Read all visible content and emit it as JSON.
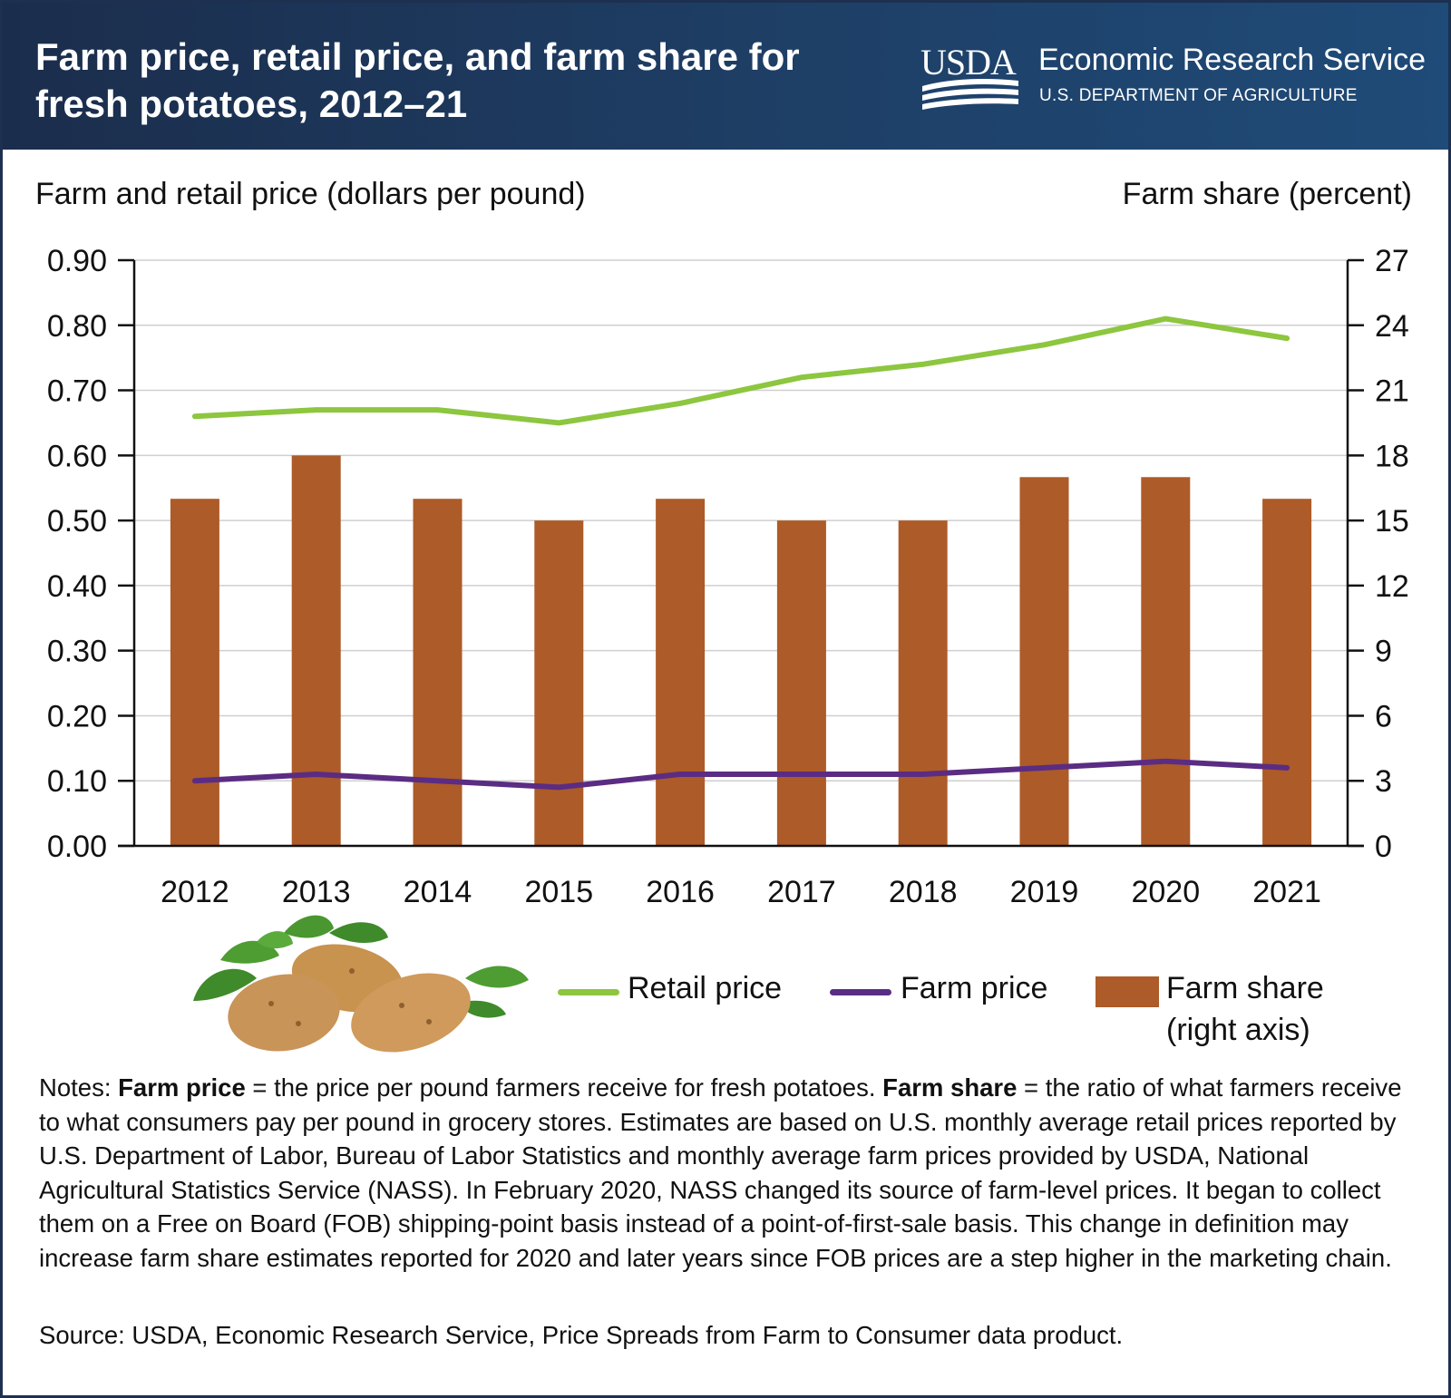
{
  "header": {
    "title": "Farm price, retail price, and farm share for fresh potatoes, 2012–21",
    "brand_mark": "USDA",
    "brand_name": "Economic Research Service",
    "brand_dept": "U.S. DEPARTMENT OF AGRICULTURE"
  },
  "colors": {
    "header_bg": "#1e3f66",
    "retail_line": "#8dc63f",
    "farm_line": "#5b2c83",
    "farm_share_bar": "#ad5b28",
    "gridline": "#cfcfcf"
  },
  "chart_data": {
    "type": "bar",
    "title": "Farm price, retail price, and farm share for fresh potatoes, 2012–21",
    "ylabel": "Farm and retail price (dollars per pound)",
    "y2label": "Farm share (percent)",
    "categories": [
      "2012",
      "2013",
      "2014",
      "2015",
      "2016",
      "2017",
      "2018",
      "2019",
      "2020",
      "2021"
    ],
    "ylim": [
      0,
      0.9
    ],
    "y_ticks": [
      "0.00",
      "0.10",
      "0.20",
      "0.30",
      "0.40",
      "0.50",
      "0.60",
      "0.70",
      "0.80",
      "0.90"
    ],
    "y2lim": [
      0,
      27
    ],
    "y2_ticks": [
      "0",
      "3",
      "6",
      "9",
      "12",
      "15",
      "18",
      "21",
      "24",
      "27"
    ],
    "grid": true,
    "series": [
      {
        "name": "Retail price",
        "type": "line",
        "axis": "left",
        "values": [
          0.66,
          0.67,
          0.67,
          0.65,
          0.68,
          0.72,
          0.74,
          0.77,
          0.81,
          0.78
        ]
      },
      {
        "name": "Farm price",
        "type": "line",
        "axis": "left",
        "values": [
          0.1,
          0.11,
          0.1,
          0.09,
          0.11,
          0.11,
          0.11,
          0.12,
          0.13,
          0.12
        ]
      },
      {
        "name": "Farm share",
        "type": "bar",
        "axis": "right",
        "values": [
          16,
          18,
          16,
          15,
          16,
          15,
          15,
          17,
          17,
          16
        ]
      }
    ]
  },
  "legend": {
    "retail": "Retail price",
    "farm": "Farm price",
    "share_line1": "Farm share",
    "share_line2": "(right axis)"
  },
  "notes": {
    "prefix": "Notes: ",
    "term1": "Farm price",
    "def1": " = the price per pound farmers receive for fresh potatoes. ",
    "term2": "Farm share",
    "def2": " = the ratio of what farmers receive to what consumers pay per pound in grocery stores. Estimates are based on U.S. monthly average retail prices reported by U.S. Department of Labor, Bureau of Labor Statistics and monthly average farm prices provided by USDA, National Agricultural Statistics Service (NASS). In February 2020, NASS changed its source of farm-level prices. It began to collect them on a Free on Board (FOB) shipping-point basis instead of a point-of-first-sale basis. This change in definition may increase farm share estimates reported for 2020 and later years since FOB prices are a step higher in the marketing chain."
  },
  "source": "Source: USDA, Economic Research Service, Price Spreads from Farm to Consumer data product."
}
